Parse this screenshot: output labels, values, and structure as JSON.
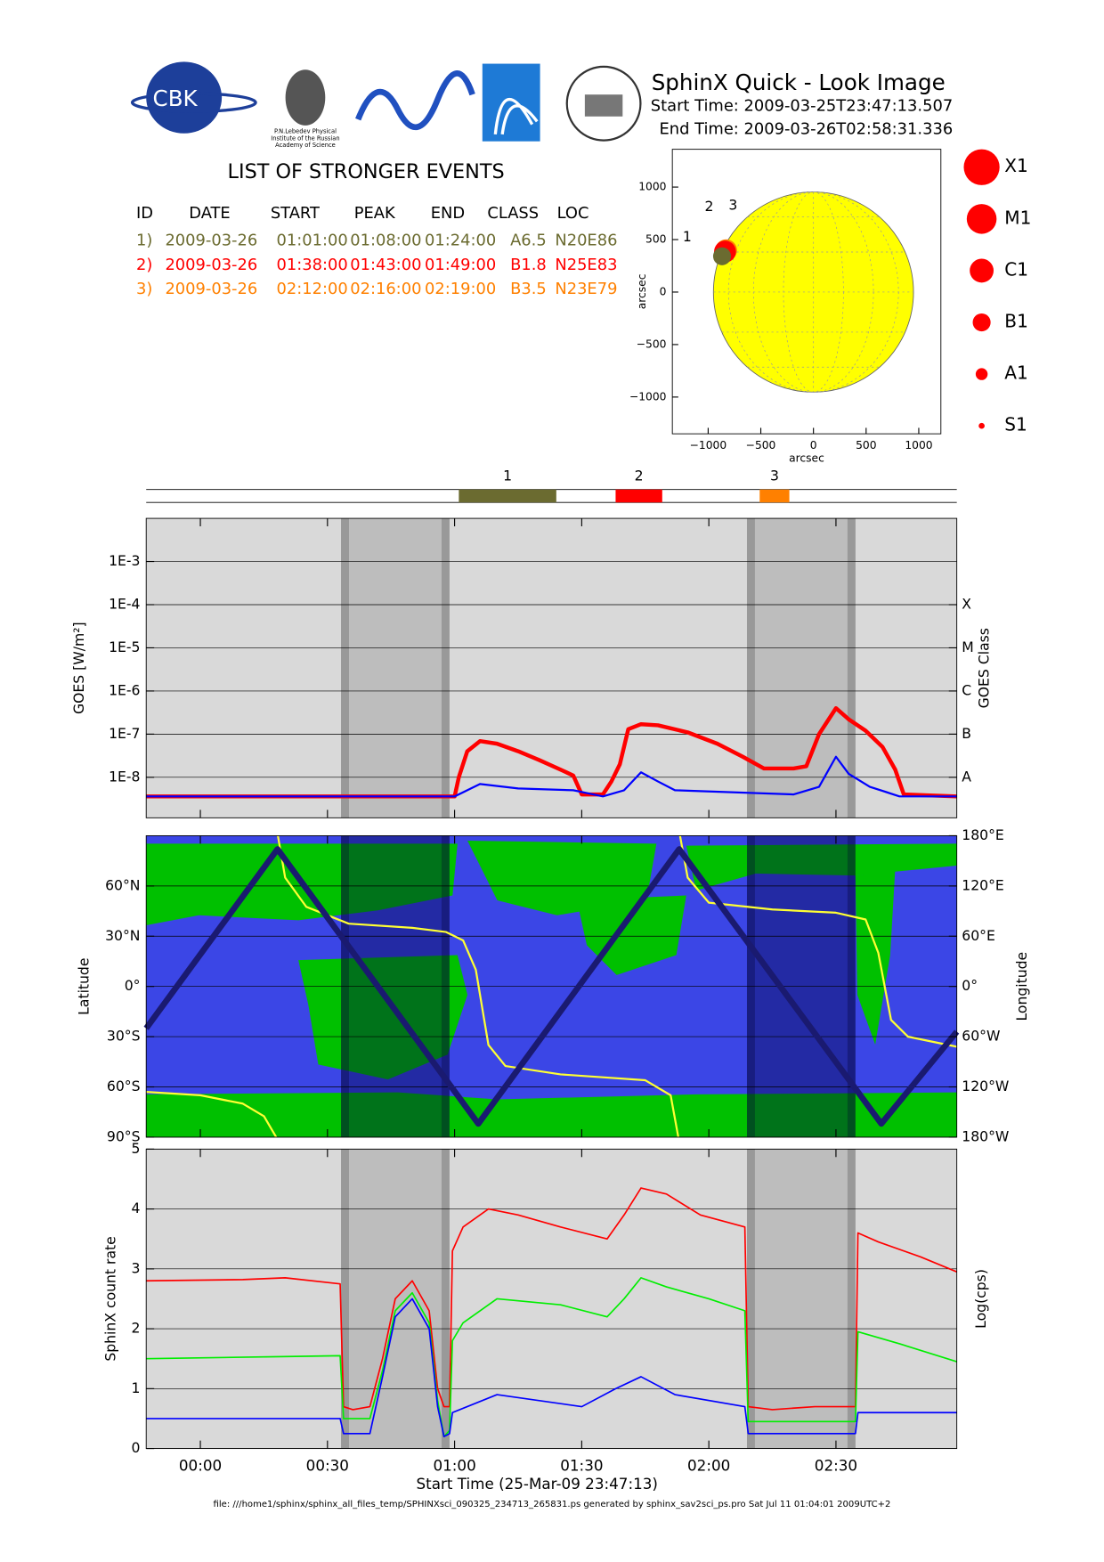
{
  "header": {
    "title": "SphinX Quick - Look Image",
    "start": "Start Time: 2009-03-25T23:47:13.507",
    "end": "End Time: 2009-03-26T02:58:31.336",
    "logo_text": "CBK",
    "logo_subtext": [
      "P.N.Lebedev Physical",
      "Institute of the Russian",
      "Academy of Science"
    ]
  },
  "events": {
    "title": "LIST OF STRONGER EVENTS",
    "columns": [
      "ID",
      "DATE",
      "START",
      "PEAK",
      "END",
      "CLASS",
      "LOC"
    ],
    "rows": [
      [
        "1)",
        "2009-03-26",
        "01:01:00",
        "01:08:00",
        "01:24:00",
        "A6.5",
        "N20E86"
      ],
      [
        "2)",
        "2009-03-26",
        "01:38:00",
        "01:43:00",
        "01:49:00",
        "B1.8",
        "N25E83"
      ],
      [
        "3)",
        "2009-03-26",
        "02:12:00",
        "02:16:00",
        "02:19:00",
        "B3.5",
        "N23E79"
      ]
    ],
    "colors": [
      "#6b6b30",
      "#ff0000",
      "#ff8000"
    ]
  },
  "time_axis": {
    "xlim": [
      -12.78,
      178.52
    ],
    "xticks": [
      {
        "value": 0,
        "label": "00:00"
      },
      {
        "value": 30,
        "label": "00:30"
      },
      {
        "value": 60,
        "label": "01:00"
      },
      {
        "value": 90,
        "label": "01:30"
      },
      {
        "value": 120,
        "label": "02:00"
      },
      {
        "value": 150,
        "label": "02:30"
      }
    ],
    "xlabel": "Start Time (25-Mar-09 23:47:13)",
    "shade": [
      [
        33.2,
        58.8
      ],
      [
        129,
        154.6
      ]
    ]
  },
  "chart_data": [
    {
      "type": "scatter",
      "xlabel": "arcsec",
      "ylabel": "arcsec",
      "xlim": [
        -1340,
        1210
      ],
      "ylim": [
        -1350,
        1360
      ],
      "xticks": [
        {
          "value": -1000,
          "label": "−1000"
        },
        {
          "value": -500,
          "label": "−500"
        },
        0,
        500,
        1000
      ],
      "yticks": [
        1000,
        500,
        0,
        {
          "value": -500,
          "label": "−500"
        },
        {
          "value": -1000,
          "label": "−1000"
        }
      ],
      "disk_radius": 950,
      "disk_color": "#ffff00",
      "labels": [
        "1",
        "2",
        "3"
      ],
      "x": [
        -868,
        -840,
        -830
      ],
      "values": [
        341,
        385,
        398
      ],
      "legend": {
        "labels": [
          "X1",
          "M1",
          "C1",
          "B1",
          "A1",
          "S1"
        ],
        "color": "#ff0000"
      }
    },
    {
      "type": "timeline",
      "labels": [
        "1",
        "2",
        "3"
      ],
      "starts": [
        61,
        98,
        132
      ],
      "ends": [
        84,
        109,
        139
      ]
    },
    {
      "type": "line",
      "ylabel": "GOES [W/m²]",
      "y2label": "GOES Class",
      "log_scale": true,
      "ylim": [
        1.15e-09,
        0.01
      ],
      "yticks": [
        {
          "value": 0.001,
          "label": "1E-3"
        },
        {
          "value": 0.0001,
          "label": "1E-4"
        },
        {
          "value": 1e-05,
          "label": "1E-5"
        },
        {
          "value": 1e-06,
          "label": "1E-6"
        },
        {
          "value": 1e-07,
          "label": "1E-7"
        },
        {
          "value": 1e-08,
          "label": "1E-8"
        }
      ],
      "y2lim": [
        1.15e-09,
        0.01
      ],
      "y2ticks": [
        {
          "value": 0.0001,
          "label": "X"
        },
        {
          "value": 1e-05,
          "label": "M"
        },
        {
          "value": 1e-06,
          "label": "C"
        },
        {
          "value": 1e-07,
          "label": "B"
        },
        {
          "value": 1e-08,
          "label": "A"
        }
      ],
      "grid": true,
      "series": [
        {
          "color": "#ff0000",
          "x": [
            -12.78,
            60,
            61,
            63,
            66,
            70,
            75,
            80,
            85,
            88,
            90,
            95,
            97,
            99,
            101,
            104,
            108,
            115,
            122,
            128,
            133,
            140,
            143,
            146,
            150,
            153,
            157,
            161,
            164,
            166,
            178.52
          ],
          "values": [
            3.6e-09,
            3.6e-09,
            1e-08,
            4e-08,
            6.9e-08,
            6e-08,
            4e-08,
            2.5e-08,
            1.5e-08,
            1.1e-08,
            4e-09,
            4e-09,
            8e-09,
            2e-08,
            1.3e-07,
            1.7e-07,
            1.6e-07,
            1.1e-07,
            6e-08,
            3e-08,
            1.6e-08,
            1.6e-08,
            1.8e-08,
            1e-07,
            4e-07,
            2.2e-07,
            1.2e-07,
            5e-08,
            1.5e-08,
            4e-09,
            3.6e-09
          ]
        },
        {
          "color": "#0000ff",
          "x": [
            -12.78,
            60,
            63,
            66,
            75,
            88,
            95,
            100,
            104,
            108,
            112,
            140,
            146,
            150,
            153,
            158,
            162,
            165,
            178.52
          ],
          "values": [
            3.6e-09,
            3.6e-09,
            5e-09,
            7e-09,
            5.5e-09,
            5e-09,
            3.6e-09,
            5e-09,
            1.3e-08,
            8e-09,
            5e-09,
            4e-09,
            6e-09,
            3e-08,
            1.2e-08,
            6e-09,
            4.5e-09,
            3.6e-09,
            3.6e-09
          ]
        }
      ]
    },
    {
      "type": "line",
      "ylabel": "Latitude",
      "y2label": "Longitude",
      "ylim": [
        -90,
        90
      ],
      "yticks": [
        {
          "value": 60,
          "label": "60°N"
        },
        {
          "value": 30,
          "label": "30°N"
        },
        {
          "value": 0,
          "label": "0°"
        },
        {
          "value": -30,
          "label": "30°S"
        },
        {
          "value": -60,
          "label": "60°S"
        },
        {
          "value": -90,
          "label": "90°S"
        }
      ],
      "y2lim": [
        -180,
        180
      ],
      "y2ticks": [
        {
          "value": 180,
          "label": "180°E"
        },
        {
          "value": 120,
          "label": "120°E"
        },
        {
          "value": 60,
          "label": "60°E"
        },
        {
          "value": 0,
          "label": "0°"
        },
        {
          "value": -60,
          "label": "60°W"
        },
        {
          "value": -120,
          "label": "120°W"
        },
        {
          "value": -180,
          "label": "180°W"
        }
      ],
      "grid": true,
      "series": [
        {
          "color": "#ffff33",
          "axis": "y2",
          "x": [
            -12.78,
            0,
            10,
            15,
            17.9,
            18.1,
            18.3,
            20,
            25,
            35,
            50,
            58,
            62,
            65,
            68,
            72,
            85,
            105,
            111,
            112.8,
            113,
            113.2,
            115,
            120,
            135,
            150,
            157,
            160,
            163,
            167,
            178.52
          ],
          "values": [
            -126,
            -130,
            -140,
            -155,
            -180,
            null,
            180,
            130,
            95,
            75,
            70,
            65,
            55,
            20,
            -70,
            -95,
            -105,
            -112,
            -130,
            -180,
            null,
            180,
            130,
            100,
            92,
            88,
            80,
            40,
            -40,
            -60,
            -72
          ]
        },
        {
          "color": "#1a1a70",
          "x": [
            -12.78,
            18.2,
            65.6,
            113,
            160.7,
            178.52
          ],
          "values": [
            -25,
            82,
            -82,
            82,
            -82,
            -27
          ]
        }
      ]
    },
    {
      "type": "line",
      "ylabel": "SphinX count rate",
      "y2label": "Log(cps)",
      "ylim": [
        0,
        5
      ],
      "yticks": [
        0,
        1,
        2,
        3,
        4,
        5
      ],
      "grid": true,
      "series": [
        {
          "color": "#ff0000",
          "x": [
            -12.78,
            10,
            20,
            33,
            33.8,
            36,
            40,
            43,
            46,
            50,
            54,
            56,
            57.5,
            58.8,
            59.5,
            62,
            68,
            75,
            85,
            96,
            100,
            104,
            110,
            118,
            128.5,
            129.3,
            135,
            145,
            154.6,
            155.2,
            160,
            170,
            178.52
          ],
          "values": [
            2.8,
            2.82,
            2.85,
            2.75,
            0.7,
            0.65,
            0.7,
            1.5,
            2.5,
            2.8,
            2.3,
            1.0,
            0.7,
            0.7,
            3.3,
            3.7,
            4.0,
            3.9,
            3.7,
            3.5,
            3.9,
            4.35,
            4.25,
            3.9,
            3.7,
            0.7,
            0.65,
            0.7,
            0.7,
            3.6,
            3.45,
            3.2,
            2.95
          ]
        },
        {
          "color": "#00ee00",
          "x": [
            -12.78,
            33,
            33.8,
            40,
            43,
            46,
            50,
            54,
            56,
            57.5,
            58.8,
            59.5,
            62,
            70,
            85,
            96,
            100,
            104,
            110,
            120,
            128.5,
            129.3,
            145,
            154.6,
            155.2,
            165,
            178.52
          ],
          "values": [
            1.5,
            1.55,
            0.5,
            0.5,
            1.3,
            2.3,
            2.6,
            2.1,
            0.8,
            0.2,
            0.3,
            1.8,
            2.1,
            2.5,
            2.4,
            2.2,
            2.5,
            2.85,
            2.7,
            2.5,
            2.3,
            0.45,
            0.45,
            0.45,
            1.95,
            1.75,
            1.45
          ]
        },
        {
          "color": "#0000ff",
          "x": [
            -12.78,
            33,
            33.8,
            40,
            43,
            46,
            50,
            54,
            56,
            57.5,
            58.8,
            59.5,
            70,
            90,
            98,
            104,
            112,
            128.5,
            129.3,
            154.6,
            155.2,
            178.52
          ],
          "values": [
            0.5,
            0.5,
            0.25,
            0.25,
            1.2,
            2.2,
            2.5,
            2.0,
            0.7,
            0.2,
            0.25,
            0.6,
            0.9,
            0.7,
            1.0,
            1.2,
            0.9,
            0.7,
            0.25,
            0.25,
            0.6,
            0.6
          ]
        }
      ]
    }
  ],
  "footer": "file: ///home1/sphinx/sphinx_all_files_temp/SPHINXsci_090325_234713_265831.ps generated by sphinx_sav2sci_ps.pro Sat Jul 11 01:04:01 2009UTC+2"
}
